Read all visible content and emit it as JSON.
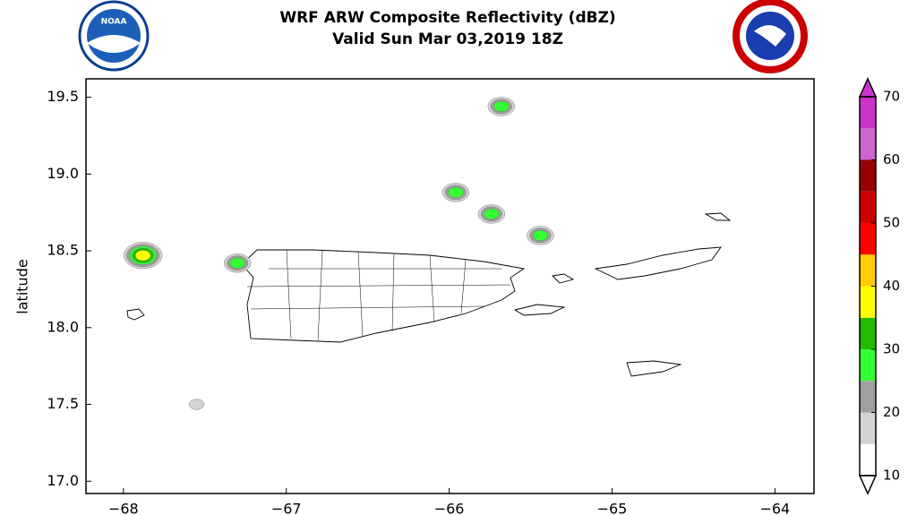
{
  "chart_data": {
    "type": "map",
    "title": "WRF ARW Composite Reflectivity (dBZ)",
    "subtitle": "Valid Sun Mar 03,2019 18Z",
    "ylabel": "latitude",
    "logo_text": "NOAA",
    "xlim": [
      -68.23,
      -63.76
    ],
    "ylim": [
      16.92,
      19.62
    ],
    "xticks": [
      {
        "value": -68,
        "label": "−68"
      },
      {
        "value": -67,
        "label": "−67"
      },
      {
        "value": -66,
        "label": "−66"
      },
      {
        "value": -65,
        "label": "−65"
      },
      {
        "value": -64,
        "label": "−64"
      }
    ],
    "yticks": [
      {
        "value": 17,
        "label": "17.0"
      },
      17.5,
      {
        "value": 18,
        "label": "18.0"
      },
      18.5,
      {
        "value": 19,
        "label": "19.0"
      },
      19.5
    ],
    "cells": {
      "x": [
        -67.88,
        -67.3,
        -65.68,
        -65.96,
        -65.74,
        -65.44,
        -67.55
      ],
      "y": [
        18.47,
        18.42,
        19.44,
        18.88,
        18.74,
        18.6,
        17.5
      ],
      "values": [
        37,
        27,
        27,
        27,
        27,
        27,
        17
      ]
    },
    "colorbar": {
      "levels": [
        10,
        15,
        20,
        25,
        30,
        35,
        40,
        45,
        50,
        55,
        60,
        65,
        70
      ],
      "colors": [
        "#ffffff",
        "#d3d3d3",
        "#a0a0a0",
        "#33ff33",
        "#22bb00",
        "#ffff00",
        "#ffcc00",
        "#ff0000",
        "#cc0000",
        "#990000",
        "#cc66cc",
        "#cc33cc"
      ],
      "lim": [
        10,
        70
      ],
      "ticks": [
        10,
        20,
        30,
        40,
        50,
        60,
        70
      ]
    }
  }
}
